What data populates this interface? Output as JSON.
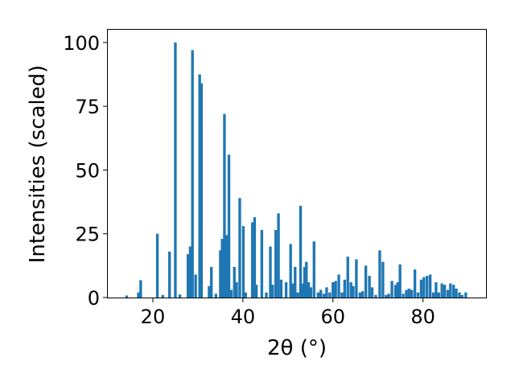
{
  "chart_data": {
    "type": "bar",
    "title": "",
    "xlabel": "2θ (°)",
    "ylabel": "Intensities (scaled)",
    "xlim": [
      10,
      94
    ],
    "ylim": [
      0,
      105
    ],
    "x_ticks": [
      20,
      40,
      60,
      80
    ],
    "y_ticks": [
      0,
      25,
      50,
      75,
      100
    ],
    "grid": false,
    "bar_width": 0.6,
    "color": "#1f77b4",
    "x": [
      14.2,
      16.8,
      17.3,
      21.0,
      22.2,
      23.7,
      25.0,
      26.0,
      27.8,
      28.3,
      28.8,
      29.5,
      30.4,
      30.8,
      32.5,
      33.0,
      34.0,
      35.0,
      35.4,
      35.9,
      36.4,
      36.9,
      37.4,
      38.1,
      38.6,
      39.3,
      40.1,
      40.6,
      42.1,
      42.6,
      43.0,
      44.2,
      45.2,
      46.1,
      46.6,
      47.3,
      47.9,
      48.5,
      49.6,
      50.6,
      51.1,
      51.6,
      52.2,
      52.8,
      53.2,
      53.7,
      54.1,
      54.6,
      55.1,
      55.8,
      56.7,
      57.3,
      58.0,
      58.6,
      59.3,
      60.0,
      60.6,
      61.3,
      62.0,
      62.6,
      63.3,
      64.0,
      64.5,
      65.2,
      66.0,
      66.6,
      67.3,
      68.1,
      68.7,
      69.5,
      70.4,
      71.1,
      71.8,
      72.4,
      73.1,
      73.9,
      74.4,
      74.9,
      75.6,
      76.3,
      76.9,
      77.5,
      78.2,
      78.9,
      79.6,
      80.2,
      80.9,
      81.6,
      82.3,
      82.9,
      83.5,
      84.2,
      84.8,
      85.5,
      86.1,
      86.8,
      87.4,
      88.1,
      88.7,
      89.5
    ],
    "values": [
      0.8,
      2,
      6.8,
      25,
      1,
      18,
      100,
      1.2,
      17,
      20,
      97,
      9,
      87.5,
      84,
      4.5,
      12,
      1.5,
      18.5,
      23,
      72,
      24.5,
      56,
      3,
      12,
      6,
      39,
      28,
      2,
      29.5,
      31.5,
      5,
      26.5,
      2,
      20,
      5,
      26.5,
      33,
      7,
      6,
      21,
      5.5,
      12,
      2,
      36,
      5.5,
      12,
      14,
      6,
      4,
      22,
      2,
      3,
      1.5,
      4,
      2,
      6,
      6.5,
      9,
      2,
      7,
      16,
      6,
      4.5,
      15,
      2,
      2.5,
      12.5,
      8.5,
      4,
      1,
      18.5,
      14,
      1,
      1.5,
      6.5,
      5,
      6,
      13,
      1.5,
      3,
      3.5,
      3,
      11,
      2,
      7,
      8,
      8.5,
      9,
      2,
      6,
      2,
      5.5,
      5,
      3,
      5.5,
      5,
      3.5,
      2,
      1,
      2
    ]
  }
}
